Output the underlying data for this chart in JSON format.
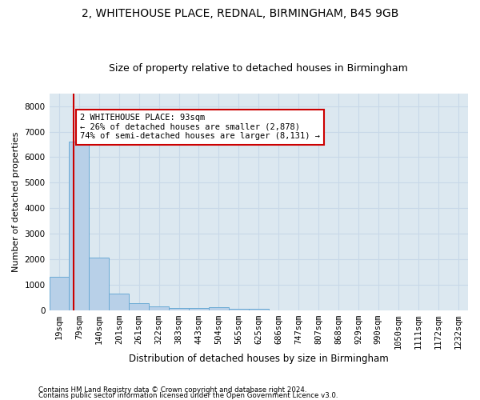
{
  "title1": "2, WHITEHOUSE PLACE, REDNAL, BIRMINGHAM, B45 9GB",
  "title2": "Size of property relative to detached houses in Birmingham",
  "xlabel": "Distribution of detached houses by size in Birmingham",
  "ylabel": "Number of detached properties",
  "footnote1": "Contains HM Land Registry data © Crown copyright and database right 2024.",
  "footnote2": "Contains public sector information licensed under the Open Government Licence v3.0.",
  "bar_labels": [
    "19sqm",
    "79sqm",
    "140sqm",
    "201sqm",
    "261sqm",
    "322sqm",
    "383sqm",
    "443sqm",
    "504sqm",
    "565sqm",
    "625sqm",
    "686sqm",
    "747sqm",
    "807sqm",
    "868sqm",
    "929sqm",
    "990sqm",
    "1050sqm",
    "1111sqm",
    "1172sqm",
    "1232sqm"
  ],
  "bar_values": [
    1300,
    6600,
    2080,
    650,
    285,
    140,
    100,
    80,
    130,
    50,
    50,
    0,
    0,
    0,
    0,
    0,
    0,
    0,
    0,
    0,
    0
  ],
  "bar_color": "#b8d0e8",
  "bar_edge_color": "#6aaad4",
  "annotation_line1": "2 WHITEHOUSE PLACE: 93sqm",
  "annotation_line2": "← 26% of detached houses are smaller (2,878)",
  "annotation_line3": "74% of semi-detached houses are larger (8,131) →",
  "annotation_box_color": "#ffffff",
  "annotation_box_edge": "#cc0000",
  "ylim": [
    0,
    8500
  ],
  "yticks": [
    0,
    1000,
    2000,
    3000,
    4000,
    5000,
    6000,
    7000,
    8000
  ],
  "grid_color": "#c8d8e8",
  "background_color": "#dce8f0",
  "red_line_color": "#cc0000",
  "title1_fontsize": 10,
  "title2_fontsize": 9,
  "xlabel_fontsize": 8.5,
  "ylabel_fontsize": 8,
  "tick_fontsize": 7.5,
  "annot_fontsize": 7.5
}
